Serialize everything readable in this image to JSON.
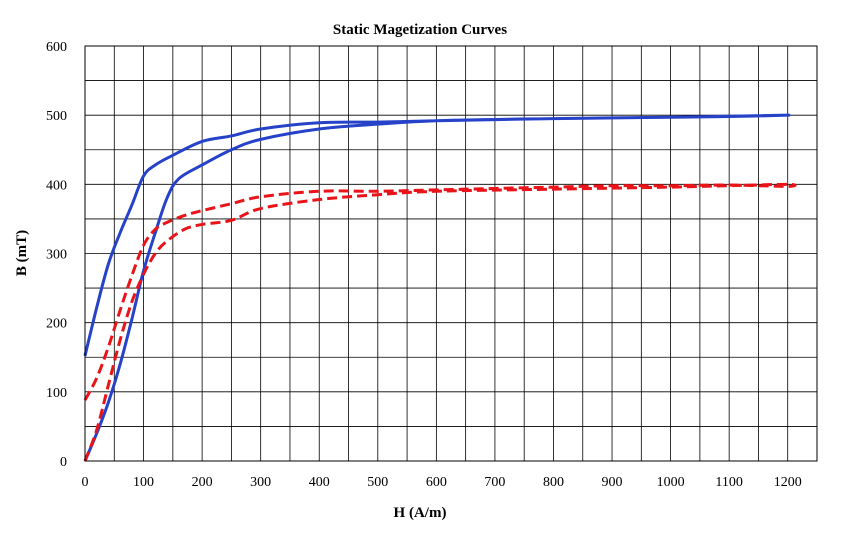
{
  "chart_data": {
    "type": "line",
    "title": "Static Magetization Curves",
    "xlabel": "H (A/m)",
    "ylabel": "B (mT)",
    "xlim": [
      0,
      1250
    ],
    "ylim": [
      0,
      600
    ],
    "x_ticks": [
      0,
      100,
      200,
      300,
      400,
      500,
      600,
      700,
      800,
      900,
      1000,
      1100,
      1200
    ],
    "y_ticks": [
      0,
      100,
      200,
      300,
      400,
      500,
      600
    ],
    "x_minor_step": 50,
    "y_minor_step": 50,
    "grid": true,
    "legend": "none",
    "series": [
      {
        "color": "#2642C8",
        "line_style": "solid",
        "points": [
          [
            0,
            0
          ],
          [
            20,
            40
          ],
          [
            40,
            85
          ],
          [
            60,
            140
          ],
          [
            80,
            205
          ],
          [
            100,
            275
          ],
          [
            120,
            330
          ],
          [
            140,
            380
          ],
          [
            160,
            408
          ],
          [
            200,
            428
          ],
          [
            250,
            450
          ],
          [
            300,
            465
          ],
          [
            400,
            480
          ],
          [
            500,
            487
          ],
          [
            600,
            492
          ],
          [
            800,
            495
          ],
          [
            1000,
            497
          ],
          [
            1200,
            500
          ],
          [
            1100,
            498
          ],
          [
            1000,
            497
          ],
          [
            800,
            495
          ],
          [
            600,
            492
          ],
          [
            500,
            490
          ],
          [
            400,
            489
          ],
          [
            300,
            480
          ],
          [
            250,
            470
          ],
          [
            200,
            462
          ],
          [
            150,
            442
          ],
          [
            120,
            428
          ],
          [
            100,
            412
          ],
          [
            80,
            370
          ],
          [
            60,
            330
          ],
          [
            40,
            285
          ],
          [
            20,
            222
          ],
          [
            0,
            152
          ]
        ]
      },
      {
        "color": "#E8141A",
        "line_style": "dashed",
        "points": [
          [
            0,
            0
          ],
          [
            20,
            45
          ],
          [
            40,
            110
          ],
          [
            60,
            175
          ],
          [
            80,
            230
          ],
          [
            100,
            270
          ],
          [
            120,
            300
          ],
          [
            140,
            318
          ],
          [
            170,
            335
          ],
          [
            200,
            342
          ],
          [
            250,
            348
          ],
          [
            300,
            365
          ],
          [
            400,
            378
          ],
          [
            500,
            385
          ],
          [
            600,
            390
          ],
          [
            800,
            393
          ],
          [
            1000,
            396
          ],
          [
            1100,
            398
          ],
          [
            1200,
            400
          ],
          [
            1200,
            397
          ],
          [
            1100,
            399
          ],
          [
            1000,
            398
          ],
          [
            900,
            398
          ],
          [
            800,
            396
          ],
          [
            700,
            394
          ],
          [
            600,
            392
          ],
          [
            500,
            390
          ],
          [
            400,
            390
          ],
          [
            300,
            382
          ],
          [
            250,
            372
          ],
          [
            200,
            362
          ],
          [
            170,
            355
          ],
          [
            140,
            345
          ],
          [
            120,
            335
          ],
          [
            100,
            312
          ],
          [
            80,
            268
          ],
          [
            60,
            218
          ],
          [
            40,
            165
          ],
          [
            20,
            120
          ],
          [
            0,
            88
          ]
        ]
      }
    ]
  }
}
